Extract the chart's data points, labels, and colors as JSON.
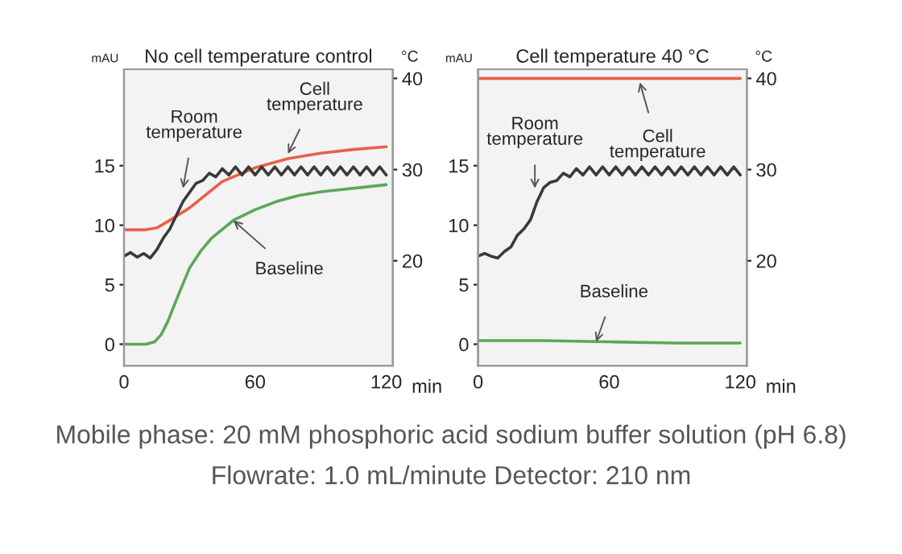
{
  "chart_data": [
    {
      "type": "line",
      "title": "No cell temperature control",
      "xlabel": "min",
      "ylabel": "mAU",
      "y2label": "°C",
      "xlim": [
        0,
        123
      ],
      "xticks": [
        0,
        60,
        120
      ],
      "ylim": [
        -1.8,
        23.1
      ],
      "yticks": [
        0,
        5,
        10,
        15
      ],
      "y2lim": [
        8.5,
        41.0
      ],
      "y2ticks": [
        20,
        30,
        40
      ],
      "series": [
        {
          "color": "#5aa85a",
          "x": [
            0,
            10,
            14,
            17,
            20,
            25,
            30,
            35,
            40,
            50,
            60,
            70,
            80,
            90,
            100,
            110,
            120
          ],
          "values": [
            0,
            0,
            0.2,
            0.8,
            1.9,
            4.2,
            6.4,
            7.8,
            8.9,
            10.4,
            11.3,
            12.0,
            12.5,
            12.8,
            13.0,
            13.2,
            13.4
          ]
        },
        {
          "color": "#e8604c",
          "axis": "y2",
          "x": [
            0,
            10,
            15,
            20,
            30,
            45,
            60,
            75,
            90,
            105,
            120
          ],
          "values": [
            23.4,
            23.4,
            23.6,
            24.3,
            25.8,
            28.7,
            30.2,
            31.2,
            31.8,
            32.2,
            32.5
          ]
        },
        {
          "color": "#3a3a3a",
          "axis": "y2",
          "x": [
            0,
            3,
            6,
            9,
            12,
            15,
            18,
            21,
            24,
            27,
            30,
            33,
            36,
            39,
            42,
            45,
            48,
            51,
            54,
            57,
            60,
            63,
            66,
            69,
            72,
            75,
            78,
            81,
            84,
            87,
            90,
            93,
            96,
            99,
            102,
            105,
            108,
            111,
            114,
            117,
            120
          ],
          "values": [
            20.5,
            20.9,
            20.4,
            20.8,
            20.3,
            21.2,
            22.5,
            23.5,
            25.0,
            26.5,
            27.5,
            28.5,
            28.8,
            29.6,
            29.2,
            30.1,
            29.4,
            30.3,
            29.4,
            30.3,
            29.4,
            30.3,
            29.4,
            30.3,
            29.4,
            30.3,
            29.4,
            30.3,
            29.4,
            30.3,
            29.4,
            30.3,
            29.4,
            30.3,
            29.4,
            30.3,
            29.4,
            30.3,
            29.4,
            30.3,
            29.4
          ]
        }
      ],
      "annotations": [
        {
          "text": "Room\ntemperature",
          "x": 27,
          "y": 13.1
        },
        {
          "text": "Cell\ntemperature",
          "x": 75,
          "y": 16.0
        },
        {
          "text": "Baseline",
          "x": 50,
          "y": 10.4
        }
      ]
    },
    {
      "type": "line",
      "title": "Cell temperature 40 °C",
      "xlabel": "min",
      "ylabel": "mAU",
      "y2label": "°C",
      "xlim": [
        0,
        123
      ],
      "xticks": [
        0,
        60,
        120
      ],
      "ylim": [
        -1.8,
        23.1
      ],
      "yticks": [
        0,
        5,
        10,
        15
      ],
      "y2lim": [
        8.5,
        41.0
      ],
      "y2ticks": [
        20,
        30,
        40
      ],
      "series": [
        {
          "color": "#5aa85a",
          "x": [
            0,
            30,
            60,
            90,
            120
          ],
          "values": [
            0.3,
            0.3,
            0.2,
            0.1,
            0.1
          ]
        },
        {
          "color": "#e8604c",
          "axis": "y2",
          "x": [
            0,
            120
          ],
          "values": [
            40,
            40
          ]
        },
        {
          "color": "#3a3a3a",
          "axis": "y2",
          "x": [
            0,
            3,
            6,
            9,
            12,
            15,
            18,
            21,
            24,
            27,
            30,
            33,
            36,
            39,
            42,
            45,
            48,
            51,
            54,
            57,
            60,
            63,
            66,
            69,
            72,
            75,
            78,
            81,
            84,
            87,
            90,
            93,
            96,
            99,
            102,
            105,
            108,
            111,
            114,
            117,
            120
          ],
          "values": [
            20.5,
            20.8,
            20.5,
            20.3,
            21.0,
            21.5,
            22.8,
            23.5,
            24.5,
            26.5,
            28.0,
            28.6,
            28.8,
            29.6,
            29.2,
            30.1,
            29.4,
            30.3,
            29.4,
            30.3,
            29.4,
            30.3,
            29.4,
            30.3,
            29.4,
            30.3,
            29.4,
            30.3,
            29.4,
            30.3,
            29.4,
            30.3,
            29.4,
            30.3,
            29.4,
            30.3,
            29.4,
            30.3,
            29.4,
            30.3,
            29.4
          ]
        }
      ],
      "annotations": [
        {
          "text": "Room\ntemperature",
          "x": 26,
          "y": 13.1
        },
        {
          "text": "Cell\ntemperature",
          "x": 74,
          "y": 22.0
        },
        {
          "text": "Baseline",
          "x": 54,
          "y": 0.2
        },
        "Mobile phase: 20 mM phosphoric acid sodium buffer solution (pH 6.8) Flowrate: 1.0 mL/minute Detector: 210 nm"
      ]
    }
  ]
}
